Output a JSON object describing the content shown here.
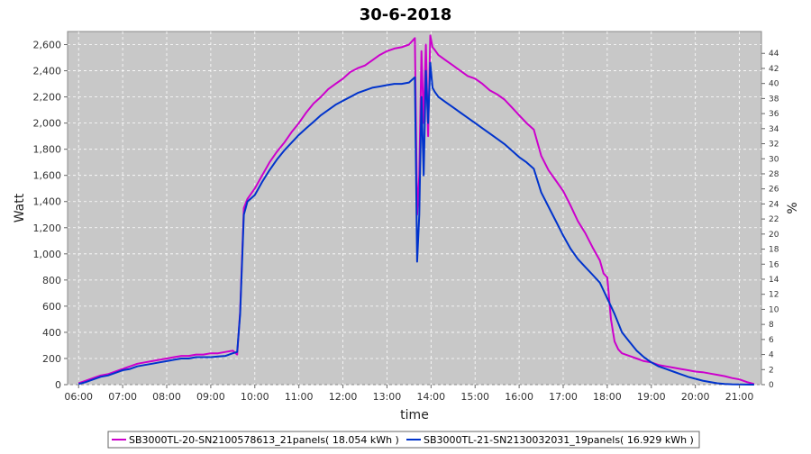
{
  "chart_data": {
    "type": "line",
    "title": "30-6-2018",
    "xlabel": "time",
    "ylabel": "Watt",
    "y2label": "%",
    "xlim": [
      "05:45",
      "21:30"
    ],
    "ylim": [
      0,
      2700
    ],
    "y2lim": [
      0,
      46.9
    ],
    "x_ticks": [
      "06:00",
      "07:00",
      "08:00",
      "09:00",
      "10:00",
      "11:00",
      "12:00",
      "13:00",
      "14:00",
      "15:00",
      "16:00",
      "17:00",
      "18:00",
      "19:00",
      "20:00",
      "21:00"
    ],
    "y_ticks": [
      "0",
      "200",
      "400",
      "600",
      "800",
      "1,000",
      "1,200",
      "1,400",
      "1,600",
      "1,800",
      "2,000",
      "2,200",
      "2,400",
      "2,600"
    ],
    "y2_ticks": [
      "0",
      "2",
      "4",
      "6",
      "8",
      "10",
      "12",
      "14",
      "16",
      "18",
      "20",
      "22",
      "24",
      "26",
      "28",
      "30",
      "32",
      "34",
      "36",
      "38",
      "40",
      "42",
      "44"
    ],
    "grid": true,
    "legend_position": "bottom",
    "background": "#c8c8c8",
    "series": [
      {
        "name": "SB3000TL-20-SN2100578613_21panels( 18.054 kWh )",
        "color": "#cc00cc",
        "x": [
          "06:00",
          "06:10",
          "06:20",
          "06:30",
          "06:40",
          "06:50",
          "07:00",
          "07:10",
          "07:20",
          "07:30",
          "07:40",
          "07:50",
          "08:00",
          "08:10",
          "08:20",
          "08:30",
          "08:40",
          "08:50",
          "09:00",
          "09:10",
          "09:20",
          "09:30",
          "09:36",
          "09:40",
          "09:45",
          "09:50",
          "10:00",
          "10:10",
          "10:20",
          "10:30",
          "10:40",
          "10:50",
          "11:00",
          "11:10",
          "11:20",
          "11:30",
          "11:40",
          "11:50",
          "12:00",
          "12:10",
          "12:20",
          "12:30",
          "12:40",
          "12:50",
          "13:00",
          "13:10",
          "13:20",
          "13:30",
          "13:38",
          "13:41",
          "13:44",
          "13:47",
          "13:50",
          "13:53",
          "13:56",
          "13:59",
          "14:02",
          "14:05",
          "14:10",
          "14:20",
          "14:30",
          "14:40",
          "14:50",
          "15:00",
          "15:10",
          "15:20",
          "15:30",
          "15:40",
          "15:50",
          "16:00",
          "16:10",
          "16:20",
          "16:25",
          "16:30",
          "16:40",
          "16:50",
          "17:00",
          "17:10",
          "17:20",
          "17:30",
          "17:40",
          "17:50",
          "17:55",
          "18:00",
          "18:05",
          "18:10",
          "18:15",
          "18:20",
          "18:30",
          "18:40",
          "18:50",
          "19:00",
          "19:10",
          "19:20",
          "19:30",
          "19:40",
          "19:50",
          "20:00",
          "20:10",
          "20:20",
          "20:30",
          "20:40",
          "20:50",
          "21:00",
          "21:10",
          "21:20"
        ],
        "values": [
          10,
          30,
          50,
          70,
          80,
          100,
          120,
          140,
          160,
          170,
          180,
          190,
          200,
          210,
          220,
          220,
          230,
          230,
          240,
          240,
          250,
          260,
          230,
          560,
          1350,
          1420,
          1500,
          1600,
          1700,
          1780,
          1850,
          1930,
          2000,
          2080,
          2150,
          2200,
          2260,
          2300,
          2340,
          2390,
          2420,
          2440,
          2480,
          2520,
          2550,
          2570,
          2580,
          2600,
          2650,
          1300,
          1600,
          2550,
          2000,
          2600,
          1900,
          2670,
          2580,
          2560,
          2520,
          2480,
          2440,
          2400,
          2360,
          2340,
          2300,
          2250,
          2220,
          2180,
          2120,
          2060,
          2000,
          1950,
          1850,
          1750,
          1640,
          1560,
          1480,
          1370,
          1250,
          1160,
          1050,
          950,
          850,
          820,
          500,
          330,
          270,
          240,
          220,
          200,
          180,
          170,
          150,
          140,
          130,
          120,
          110,
          100,
          95,
          85,
          75,
          65,
          50,
          40,
          20,
          5
        ]
      },
      {
        "name": "SB3000TL-21-SN2130032031_19panels( 16.929 kWh )",
        "color": "#0033cc",
        "x": [
          "06:00",
          "06:10",
          "06:20",
          "06:30",
          "06:40",
          "06:50",
          "07:00",
          "07:10",
          "07:20",
          "07:30",
          "07:40",
          "07:50",
          "08:00",
          "08:10",
          "08:20",
          "08:30",
          "08:40",
          "08:50",
          "09:00",
          "09:10",
          "09:20",
          "09:30",
          "09:36",
          "09:40",
          "09:45",
          "09:50",
          "10:00",
          "10:10",
          "10:20",
          "10:30",
          "10:40",
          "10:50",
          "11:00",
          "11:10",
          "11:20",
          "11:30",
          "11:40",
          "11:50",
          "12:00",
          "12:10",
          "12:20",
          "12:30",
          "12:40",
          "12:50",
          "13:00",
          "13:10",
          "13:20",
          "13:30",
          "13:38",
          "13:41",
          "13:44",
          "13:47",
          "13:50",
          "13:53",
          "13:56",
          "13:59",
          "14:02",
          "14:05",
          "14:10",
          "14:20",
          "14:30",
          "14:40",
          "14:50",
          "15:00",
          "15:10",
          "15:20",
          "15:30",
          "15:40",
          "15:50",
          "16:00",
          "16:10",
          "16:20",
          "16:25",
          "16:30",
          "16:40",
          "16:50",
          "17:00",
          "17:10",
          "17:20",
          "17:30",
          "17:40",
          "17:50",
          "17:55",
          "18:00",
          "18:05",
          "18:10",
          "18:15",
          "18:20",
          "18:30",
          "18:40",
          "18:50",
          "19:00",
          "19:10",
          "19:20",
          "19:30",
          "19:40",
          "19:50",
          "20:00",
          "20:10",
          "20:20",
          "20:30",
          "20:40",
          "20:50",
          "21:00",
          "21:10",
          "21:20"
        ],
        "values": [
          5,
          20,
          40,
          60,
          70,
          90,
          110,
          120,
          140,
          150,
          160,
          170,
          180,
          190,
          200,
          200,
          210,
          210,
          210,
          215,
          220,
          240,
          250,
          540,
          1300,
          1400,
          1450,
          1550,
          1640,
          1720,
          1790,
          1850,
          1910,
          1960,
          2010,
          2060,
          2100,
          2140,
          2170,
          2200,
          2230,
          2250,
          2270,
          2280,
          2290,
          2300,
          2300,
          2310,
          2350,
          940,
          1300,
          2200,
          1600,
          2400,
          2000,
          2460,
          2270,
          2240,
          2200,
          2160,
          2120,
          2080,
          2040,
          2000,
          1960,
          1920,
          1880,
          1840,
          1790,
          1740,
          1700,
          1650,
          1560,
          1470,
          1360,
          1250,
          1140,
          1040,
          960,
          900,
          840,
          780,
          720,
          660,
          600,
          540,
          470,
          400,
          330,
          260,
          210,
          170,
          140,
          120,
          100,
          80,
          60,
          45,
          30,
          20,
          10,
          5,
          3,
          2,
          1,
          0
        ]
      }
    ]
  }
}
